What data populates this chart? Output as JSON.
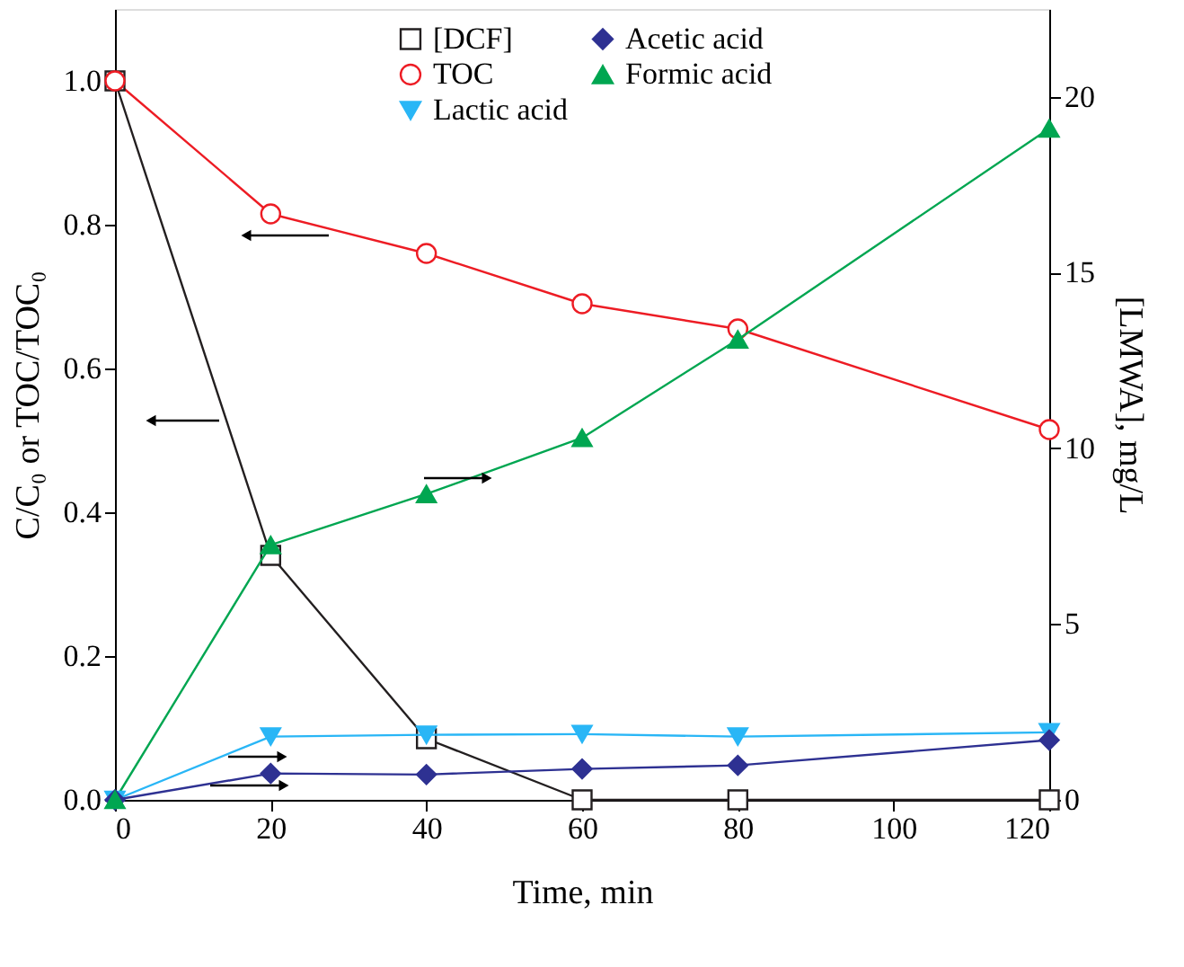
{
  "chart_data": {
    "type": "line",
    "xlabel": "Time, min",
    "ylabel": "C/C₀ or TOC/TOC₀",
    "y2label": "[LMWA], mg/L",
    "x": [
      0,
      20,
      40,
      60,
      80,
      120
    ],
    "xlim": [
      0,
      120
    ],
    "xticks": [
      0,
      20,
      40,
      60,
      80,
      100,
      120
    ],
    "ylim": [
      0,
      1.1
    ],
    "yticks": [
      {
        "value": 0,
        "label": "0.0"
      },
      0.2,
      0.4,
      0.6,
      0.8,
      {
        "value": 1,
        "label": "1.0"
      }
    ],
    "y2lim": [
      0,
      22.5
    ],
    "y2ticks": [
      0,
      5,
      10,
      15,
      20
    ],
    "grid": false,
    "legend": "top",
    "line_style": "solid",
    "series": [
      {
        "name": "[DCF]",
        "color": "#231f20",
        "marker": "square",
        "values": [
          1.0,
          0.34,
          0.085,
          0.0,
          0.0,
          0.0
        ]
      },
      {
        "name": "TOC",
        "color": "#ed1c24",
        "marker": "circle",
        "values": [
          1.0,
          0.815,
          0.76,
          0.69,
          0.655,
          0.515
        ]
      },
      {
        "name": "Lactic acid",
        "color": "#29b6f6",
        "marker": "triangle-down",
        "axis": "y2",
        "values": [
          0,
          1.8,
          1.85,
          1.87,
          1.8,
          1.92
        ]
      },
      {
        "name": "Acetic acid",
        "color": "#2e3192",
        "marker": "diamond",
        "axis": "y2",
        "values": [
          0,
          0.75,
          0.72,
          0.88,
          0.98,
          1.7
        ]
      },
      {
        "name": "Formic acid",
        "color": "#00a651",
        "marker": "triangle-up",
        "axis": "y2",
        "values": [
          0,
          7.25,
          8.7,
          10.3,
          13.1,
          19.1
        ]
      }
    ]
  }
}
